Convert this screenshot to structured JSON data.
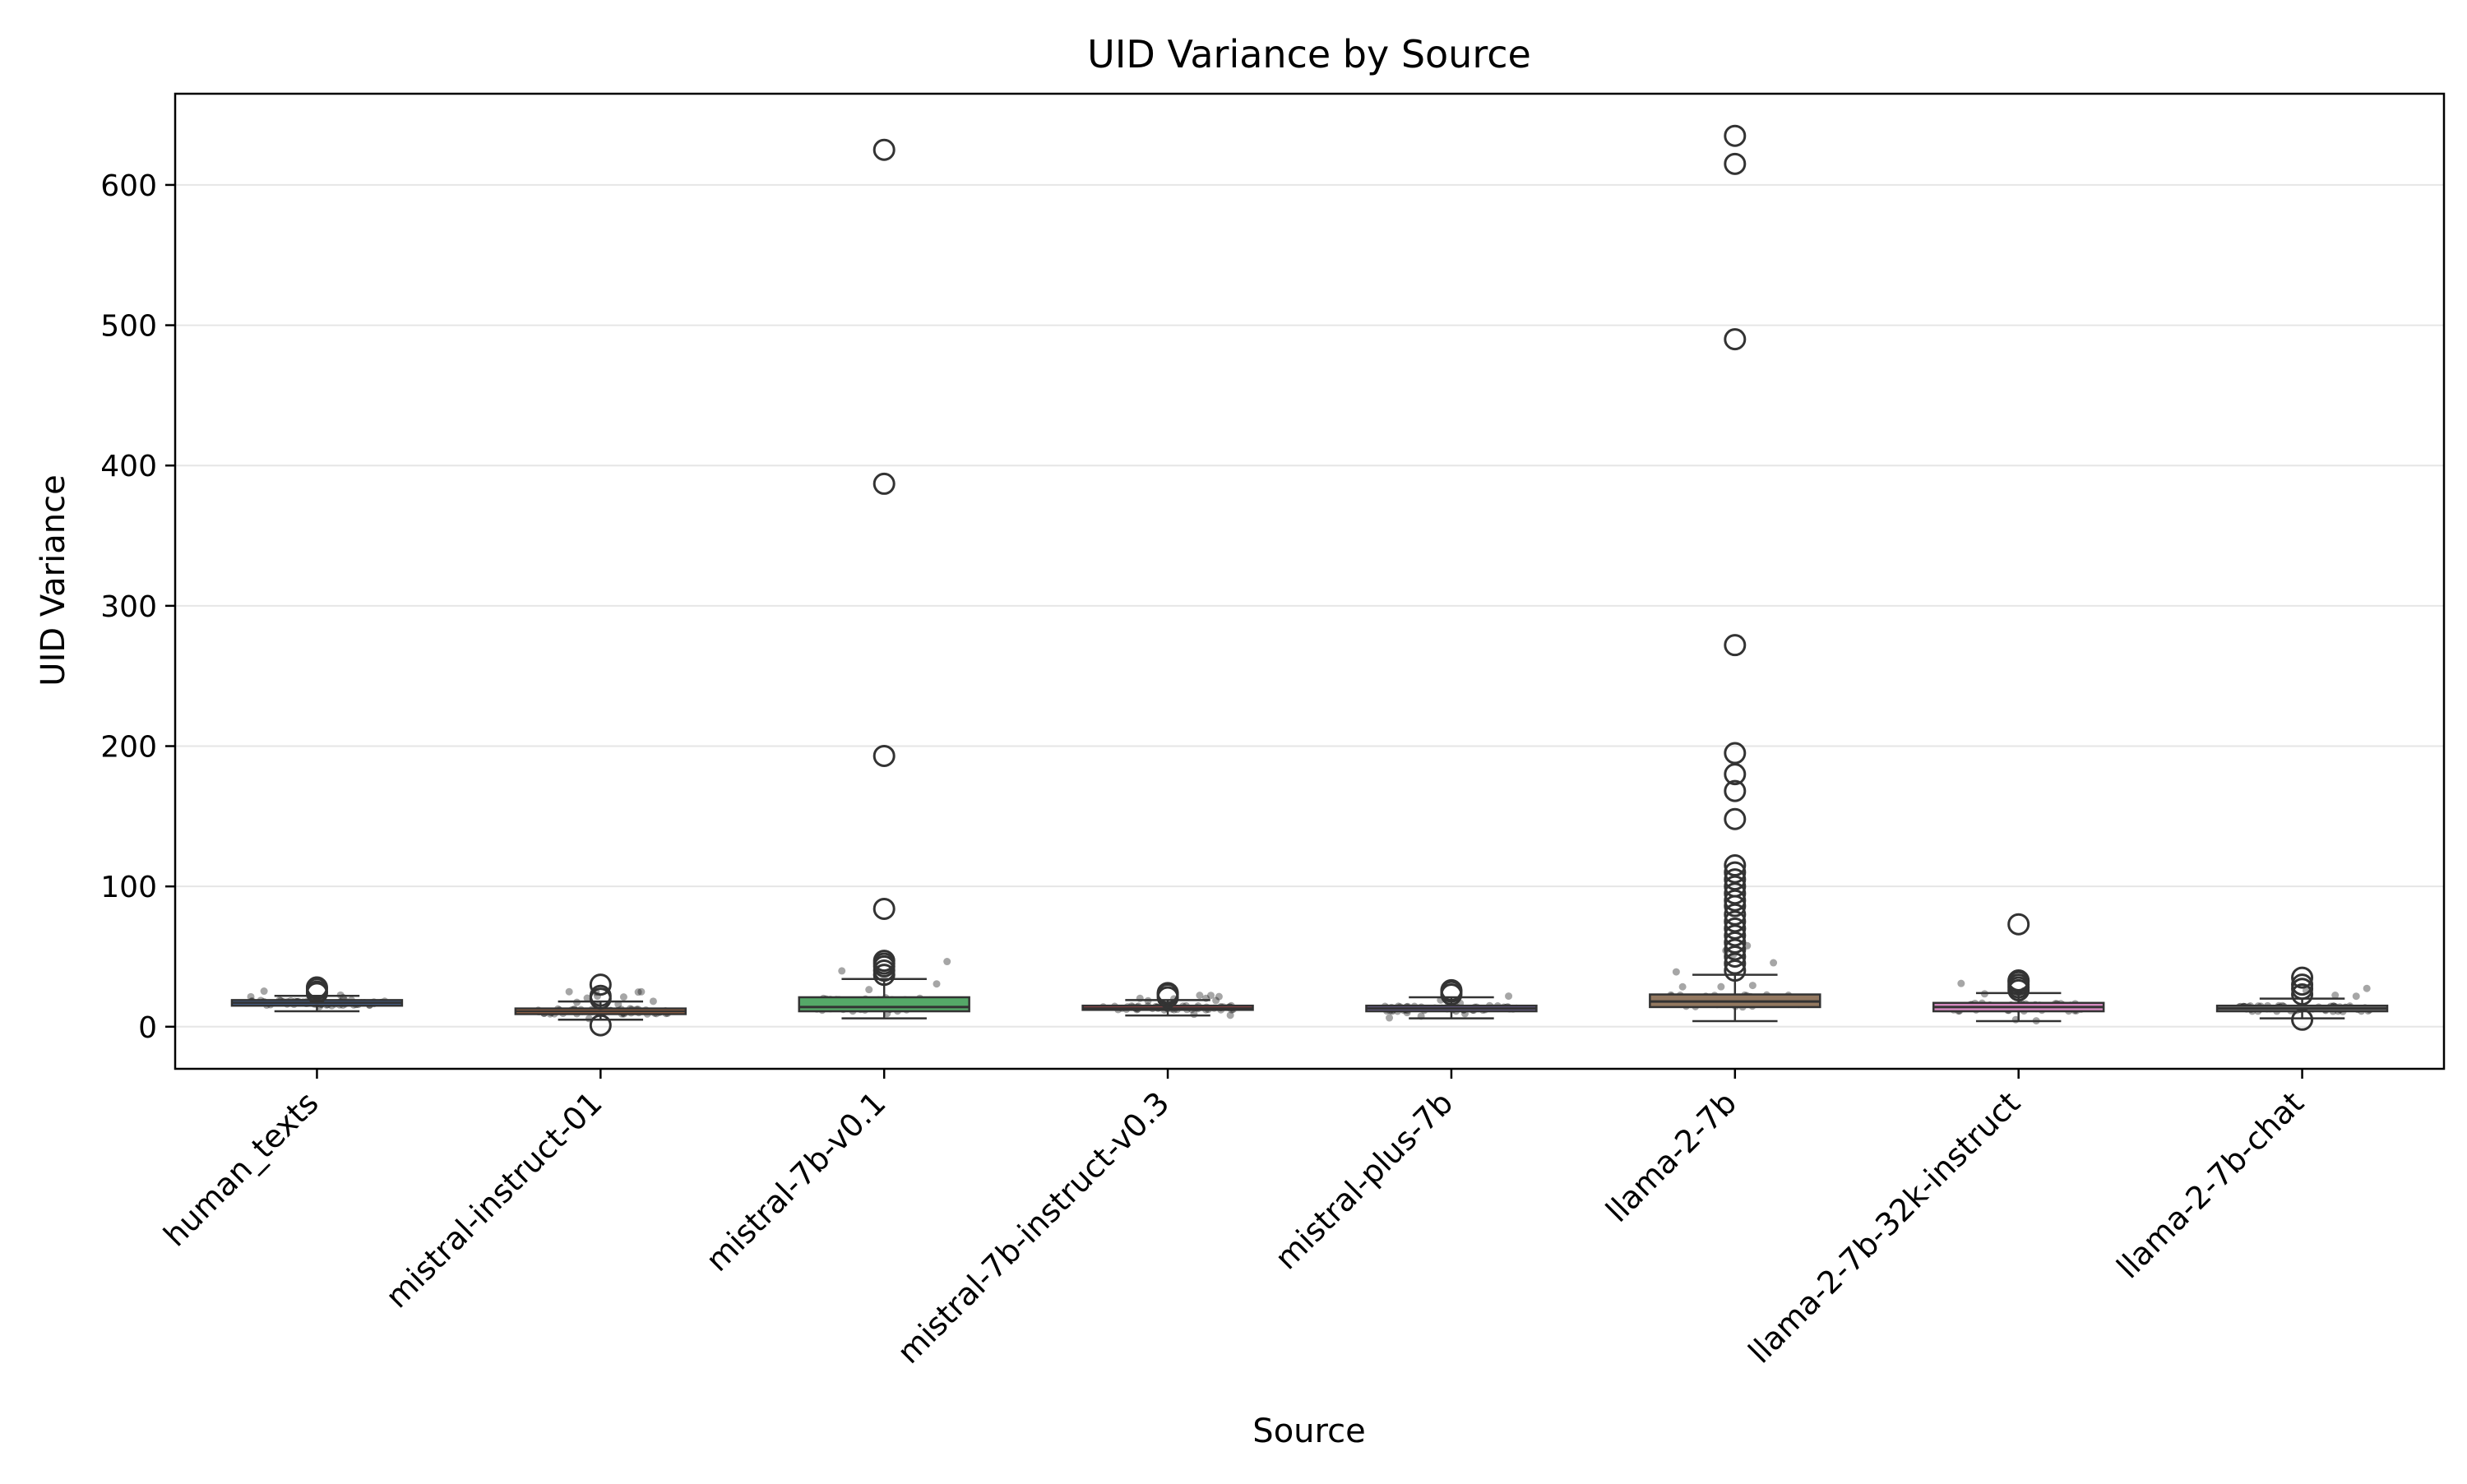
{
  "chart_data": {
    "type": "box",
    "title": "UID Variance by Source",
    "xlabel": "Source",
    "ylabel": "UID Variance",
    "ylim": [
      -30,
      665
    ],
    "yticks": [
      0,
      100,
      200,
      300,
      400,
      500,
      600
    ],
    "grid": "y",
    "legend": "none",
    "categories": [
      "human_texts",
      "mistral-instruct-01",
      "mistral-7b-v0.1",
      "mistral-7b-instruct-v0.3",
      "mistral-plus-7b",
      "llama-2-7b",
      "llama-2-7b-32k-instruct",
      "llama-2-7b-chat"
    ],
    "series": [
      {
        "q1": 15,
        "median": 17,
        "q3": 19,
        "whisker_low": 11,
        "whisker_high": 22,
        "outliers": [
          24,
          25,
          27,
          28
        ],
        "jitter_max": 28,
        "color": "#4c72b0"
      },
      {
        "q1": 9,
        "median": 11,
        "q3": 13,
        "whisker_low": 5,
        "whisker_high": 18,
        "outliers": [
          1,
          20,
          22,
          30
        ],
        "jitter_max": 30,
        "color": "#dd8452"
      },
      {
        "q1": 11,
        "median": 14,
        "q3": 21,
        "whisker_low": 6,
        "whisker_high": 34,
        "outliers": [
          37,
          40,
          43,
          45,
          47,
          84,
          193,
          387,
          625
        ],
        "jitter_max": 48,
        "color": "#55a868"
      },
      {
        "q1": 12,
        "median": 13,
        "q3": 15,
        "whisker_low": 8,
        "whisker_high": 19,
        "outliers": [
          21,
          23,
          24
        ],
        "jitter_max": 24,
        "color": "#c44e52"
      },
      {
        "q1": 11,
        "median": 13,
        "q3": 15,
        "whisker_low": 6,
        "whisker_high": 21,
        "outliers": [
          23,
          25,
          26
        ],
        "jitter_max": 26,
        "color": "#8172b3"
      },
      {
        "q1": 14,
        "median": 18,
        "q3": 23,
        "whisker_low": 4,
        "whisker_high": 37,
        "outliers": [
          40,
          45,
          50,
          55,
          60,
          65,
          70,
          75,
          80,
          86,
          90,
          95,
          100,
          105,
          110,
          115,
          148,
          168,
          180,
          195,
          272,
          490,
          615,
          635
        ],
        "jitter_max": 60,
        "color": "#937860"
      },
      {
        "q1": 11,
        "median": 14,
        "q3": 17,
        "whisker_low": 4,
        "whisker_high": 24,
        "outliers": [
          26,
          28,
          30,
          32,
          33,
          73
        ],
        "jitter_max": 33,
        "color": "#da8bc3"
      },
      {
        "q1": 11,
        "median": 13,
        "q3": 15,
        "whisker_low": 6,
        "whisker_high": 20,
        "outliers": [
          5,
          23,
          27,
          30,
          35
        ],
        "jitter_max": 35,
        "color": "#8c8c8c"
      }
    ]
  }
}
